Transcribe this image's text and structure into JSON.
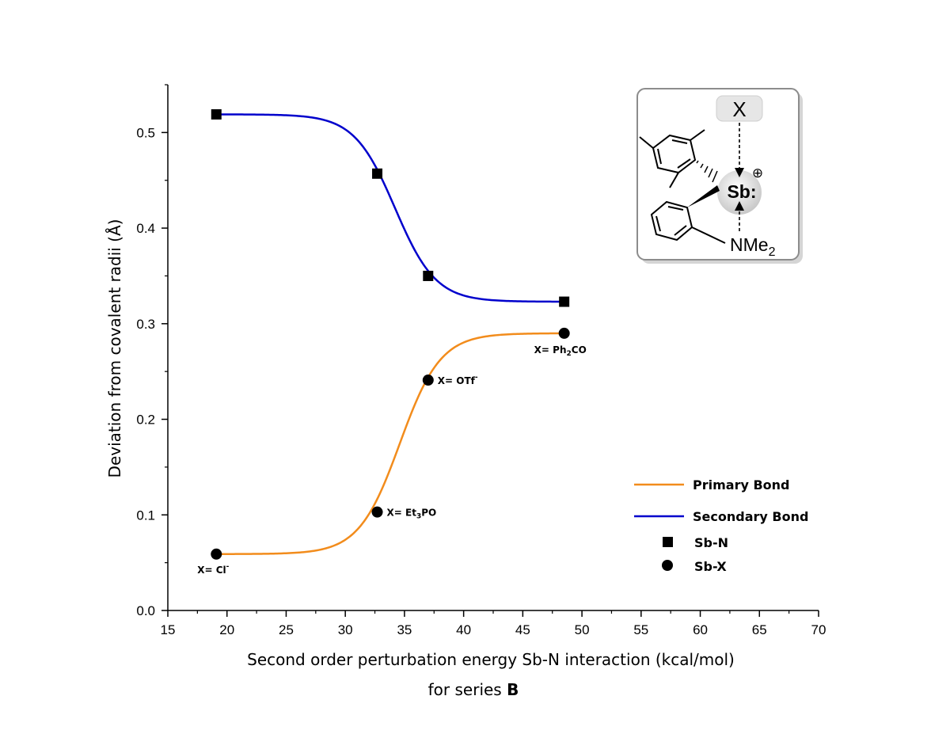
{
  "chart_data": {
    "type": "scatter",
    "xlabel": "Second order perturbation energy Sb-N interaction (kcal/mol)",
    "xlabel_line2": "for series ",
    "xlabel_line2_bold": "B",
    "ylabel": "Deviation from covalent radii (Å)",
    "xlim": [
      15,
      70
    ],
    "ylim": [
      0,
      0.55
    ],
    "xticks": [
      15,
      20,
      25,
      30,
      35,
      40,
      45,
      50,
      55,
      60,
      65,
      70
    ],
    "xtick_labels": [
      "15",
      "20",
      "25",
      "30",
      "35",
      "40",
      "45",
      "50",
      "55",
      "60",
      "65",
      "70"
    ],
    "yticks": [
      0,
      0.1,
      0.2,
      0.3,
      0.4,
      0.5
    ],
    "ytick_labels": [
      "0.0",
      "0.1",
      "0.2",
      "0.3",
      "0.4",
      "0.5"
    ],
    "grid": false,
    "legend_position": "bottom-right",
    "series": [
      {
        "name": "Sb-N",
        "marker": "square",
        "color": "#000000",
        "x": [
          19.1,
          32.7,
          37.0,
          48.5
        ],
        "y": [
          0.519,
          0.457,
          0.35,
          0.323
        ],
        "fit": {
          "name": "Secondary Bond",
          "color": "#0000cc",
          "type": "sigmoid",
          "top": 0.519,
          "bottom": 0.323,
          "x0": 34.2,
          "k": 0.58
        }
      },
      {
        "name": "Sb-X",
        "marker": "circle",
        "color": "#000000",
        "x": [
          19.1,
          32.7,
          37.0,
          48.5
        ],
        "y": [
          0.059,
          0.103,
          0.241,
          0.29
        ],
        "point_labels": [
          {
            "prefix": "X= Cl",
            "sub": "",
            "sup": "-",
            "suffix": ""
          },
          {
            "prefix": "X= Et",
            "sub": "3",
            "sup": "",
            "suffix": "PO"
          },
          {
            "prefix": "X= OTf",
            "sub": "",
            "sup": "-",
            "suffix": ""
          },
          {
            "prefix": "X= Ph",
            "sub": "2",
            "sup": "",
            "suffix": "CO"
          }
        ],
        "fit": {
          "name": "Primary Bond",
          "color": "#f28c1c",
          "type": "sigmoid",
          "top": 0.059,
          "bottom": 0.29,
          "x0": 34.6,
          "k": 0.58
        }
      }
    ],
    "legend": [
      {
        "label": "Primary Bond",
        "kind": "line",
        "color": "#f28c1c"
      },
      {
        "label": "Secondary Bond",
        "kind": "line",
        "color": "#0000cc"
      },
      {
        "label": "Sb-N",
        "kind": "square",
        "color": "#000000"
      },
      {
        "label": "Sb-X",
        "kind": "circle",
        "color": "#000000"
      }
    ]
  },
  "inset": {
    "x_label": "X",
    "center_label": "Sb:",
    "charge_symbol": "⊕",
    "amine_label": "NMe",
    "amine_sub": "2"
  }
}
